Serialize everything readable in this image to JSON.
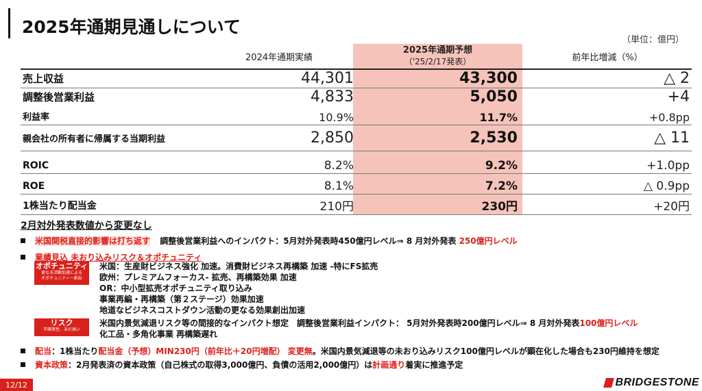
{
  "title": "2025年通期見通しについて",
  "unit": "（単位：億円）",
  "columns": {
    "prev": "2024年通期実績",
    "forecast_line1": "2025年通期予想",
    "forecast_line2": "（'25/2/17発表）",
    "change": "前年比増減（%）"
  },
  "rows": [
    {
      "label": "売上収益",
      "prev": "44,301",
      "forecast": "43,300",
      "change": "△ 2"
    },
    {
      "label": "調整後営業利益",
      "prev": "4,833",
      "forecast": "5,050",
      "change": "+4"
    },
    {
      "label": "利益率",
      "prev": "10.9%",
      "forecast": "11.7%",
      "change": "+0.8pp"
    },
    {
      "label": "親会社の所有者に帰属する当期利益",
      "prev": "2,850",
      "forecast": "2,530",
      "change": "△ 11"
    },
    {
      "label": "ROIC",
      "prev": "8.2%",
      "forecast": "9.2%",
      "change": "+1.0pp"
    },
    {
      "label": "ROE",
      "prev": "8.1%",
      "forecast": "7.2%",
      "change": "△ 0.9pp"
    },
    {
      "label": "1株当たり配当金",
      "prev": "210円",
      "forecast": "230円",
      "change": "+20円"
    }
  ],
  "notes": {
    "heading": "2月対外発表数値から変更なし",
    "b1_red": "米国関税直接的影響は打ち返す",
    "b1_text": "調整後営業利益へのインパクト：5月対外発表時450億円レベル⇒ 8 月対外発表",
    "b1_red2": "250億円レベル",
    "b2_red": "業績見込 未おり込みリスク＆オポチュニティ",
    "opportunity_tag": "オポチュニティ",
    "opportunity_sub1": "更なる活動加速による",
    "opportunity_sub2": "オポチュニティー創出",
    "opp_lines": [
      "米国：生産財ビジネス強化 加速。消費財ビジネス再構築 加速 -特にFS拡売",
      "欧州：プレミアムフォーカス- 拡売、再構築効果 加速",
      "OR：中小型拡売オポチュニティ取り込み",
      "事業再編・再構築（第２ステージ）効果加速",
      "地道なビジネスコストダウン活動の更なる効果創出加速"
    ],
    "risk_tag": "リスク",
    "risk_sub": "不確実性、未だ高い",
    "risk_line1": "米国内景気減退リスク等の間接的なインパクト想定　調整後営業利益インパクト： 5月対外発表時200億円レベル⇒ 8 月対外発表",
    "risk_line1_red": "100億円レベル",
    "risk_line2": "化工品・多角化事業 再構築遅れ",
    "b3_red1": "配当",
    "b3_t1": "：1株当たり",
    "b3_red2": "配当金（予想）MIN230円（前年比＋20円増配） 変更無",
    "b3_t2": "。米国内景気減退等の未おり込みリスク100億円レベルが顕在化した場合も230円維持を想定",
    "b4_red1": "資本政策",
    "b4_t1": "：2月発表済の資本政策（自己株式の取得3,000億円、負債の活用2,000億円）は",
    "b4_red2": "計画通り",
    "b4_t2": "着実に推進予定"
  },
  "footer": {
    "page": "12/12",
    "logo": "BRIDGESTONE"
  }
}
